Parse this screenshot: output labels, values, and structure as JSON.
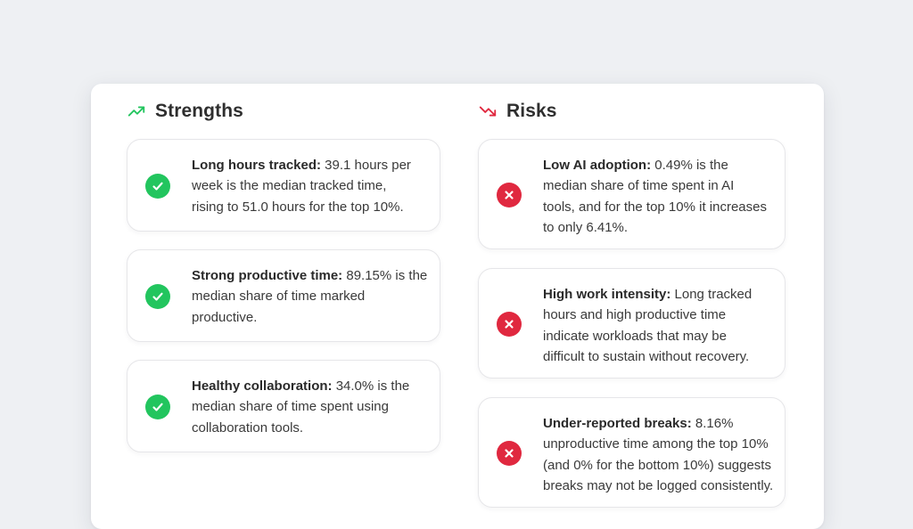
{
  "strengths": {
    "title": "Strengths",
    "icon": "trending-up-icon",
    "accent": "#22c55e",
    "items": [
      {
        "label": "Long hours tracked:",
        "lines": [
          " 39.1 hours per",
          "week is the median tracked time,",
          "rising to 51.0 hours for the top 10%."
        ]
      },
      {
        "label": "Strong productive time:",
        "lines": [
          " 89.15% is the",
          "median share of time marked",
          "productive."
        ]
      },
      {
        "label": "Healthy collaboration:",
        "lines": [
          " 34.0% is the",
          "median share of time spent using",
          "collaboration tools."
        ]
      }
    ]
  },
  "risks": {
    "title": "Risks",
    "icon": "trending-down-icon",
    "accent": "#e0283f",
    "items": [
      {
        "label": "Low AI adoption:",
        "lines": [
          " 0.49% is the",
          "median share of time spent in AI",
          "tools, and for the top 10% it increases",
          "to only 6.41%."
        ]
      },
      {
        "label": "High work intensity:",
        "lines": [
          " Long tracked",
          "hours and high productive time",
          "indicate workloads that may be",
          "difficult to sustain without recovery."
        ]
      },
      {
        "label": "Under-reported breaks:",
        "lines": [
          " 8.16%",
          "unproductive time among the top 10%",
          "(and 0% for the bottom 10%) suggests",
          "breaks may not be logged consistently."
        ]
      }
    ]
  }
}
